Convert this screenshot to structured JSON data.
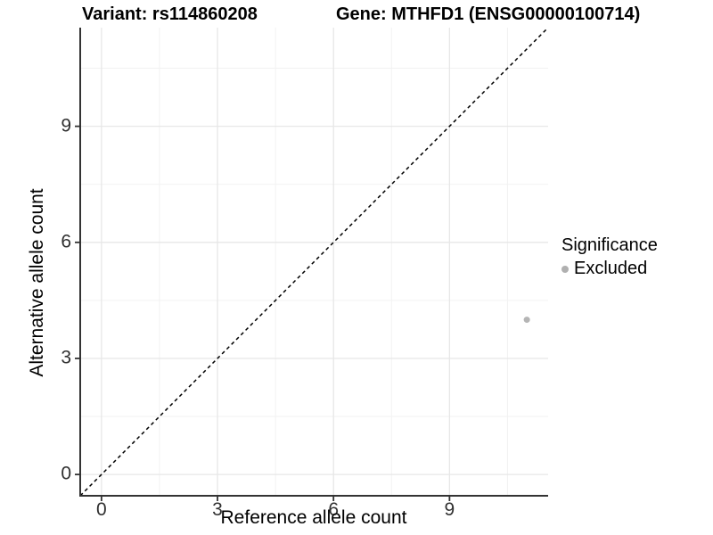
{
  "chart_data": {
    "type": "scatter",
    "titles": {
      "left": "Variant: rs114860208",
      "right": "Gene: MTHFD1 (ENSG00000100714)"
    },
    "xlabel": "Reference allele count",
    "ylabel": "Alternative allele count",
    "xlim": [
      -0.55,
      11.55
    ],
    "ylim": [
      -0.55,
      11.55
    ],
    "x_ticks": [
      0,
      3,
      6,
      9
    ],
    "y_ticks": [
      0,
      3,
      6,
      9
    ],
    "x_minor_ticks": [
      1.5,
      4.5,
      7.5,
      10.5
    ],
    "y_minor_ticks": [
      1.5,
      4.5,
      7.5,
      10.5
    ],
    "grid": true,
    "identity_line": {
      "show": true,
      "style": "dashed",
      "color": "#000000"
    },
    "series": [
      {
        "name": "Excluded",
        "color": "#b5b5b5",
        "point_radius": 3.5,
        "points": [
          {
            "x": 11,
            "y": 4
          }
        ]
      }
    ],
    "legend": {
      "title": "Significance",
      "position": "right",
      "items": [
        {
          "label": "Excluded",
          "color": "#b0b0b0",
          "shape": "circle"
        }
      ]
    }
  },
  "colors": {
    "grid_major": "#e7e7e7",
    "grid_minor": "#f2f2f2",
    "axis_line": "#333333",
    "tick_mark": "#333333",
    "tick_label": "#303030",
    "background": "#ffffff"
  }
}
